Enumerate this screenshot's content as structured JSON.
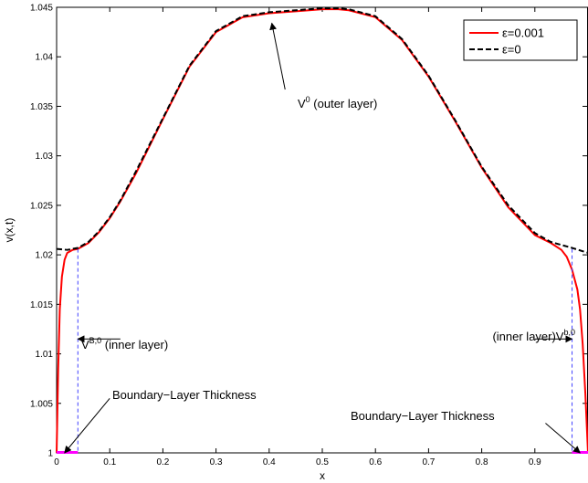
{
  "chart_data": {
    "type": "line",
    "title": "",
    "xlabel": "x",
    "ylabel": "v(x,t)",
    "xlim": [
      0,
      1
    ],
    "ylim": [
      1,
      1.045
    ],
    "x_ticks": [
      0,
      0.1,
      0.2,
      0.3,
      0.4,
      0.5,
      0.6,
      0.7,
      0.8,
      0.9
    ],
    "x_tick_labels": [
      "0",
      "0.1",
      "0.2",
      "0.3",
      "0.4",
      "0.5",
      "0.6",
      "0.7",
      "0.8",
      "0.9"
    ],
    "y_ticks": [
      1,
      1.005,
      1.01,
      1.015,
      1.02,
      1.025,
      1.03,
      1.035,
      1.04,
      1.045
    ],
    "y_tick_labels": [
      "1",
      "1.005",
      "1.01",
      "1.015",
      "1.02",
      "1.025",
      "1.03",
      "1.035",
      "1.04",
      "1.045"
    ],
    "grid": false,
    "legend_position": "top-right",
    "series": [
      {
        "name": "ε=0.001",
        "color": "#ff0000",
        "style": "solid",
        "x": [
          0,
          0.003,
          0.006,
          0.01,
          0.015,
          0.02,
          0.03,
          0.04,
          0.06,
          0.08,
          0.1,
          0.12,
          0.15,
          0.2,
          0.25,
          0.3,
          0.35,
          0.4,
          0.45,
          0.5,
          0.53,
          0.55,
          0.6,
          0.65,
          0.7,
          0.75,
          0.8,
          0.85,
          0.9,
          0.93,
          0.95,
          0.96,
          0.97,
          0.98,
          0.985,
          0.99,
          0.995,
          1.0
        ],
        "y": [
          1.0,
          1.0085,
          1.0145,
          1.0178,
          1.0195,
          1.0202,
          1.0205,
          1.0206,
          1.0212,
          1.0223,
          1.0237,
          1.0254,
          1.0283,
          1.0337,
          1.039,
          1.0425,
          1.044,
          1.0444,
          1.0446,
          1.0448,
          1.0448,
          1.0447,
          1.044,
          1.0417,
          1.038,
          1.0335,
          1.0288,
          1.0248,
          1.022,
          1.0212,
          1.0205,
          1.0198,
          1.0185,
          1.0165,
          1.0145,
          1.011,
          1.006,
          1.0
        ]
      },
      {
        "name": "ε=0",
        "color": "#000000",
        "style": "dashed",
        "x": [
          0,
          0.02,
          0.04,
          0.06,
          0.08,
          0.1,
          0.12,
          0.15,
          0.2,
          0.25,
          0.3,
          0.35,
          0.4,
          0.45,
          0.5,
          0.53,
          0.55,
          0.6,
          0.65,
          0.7,
          0.75,
          0.8,
          0.85,
          0.9,
          0.93,
          0.95,
          0.97,
          1.0
        ],
        "y": [
          1.0206,
          1.0205,
          1.0207,
          1.0213,
          1.0224,
          1.0238,
          1.0255,
          1.0285,
          1.0338,
          1.0391,
          1.0426,
          1.0441,
          1.0445,
          1.0447,
          1.0449,
          1.0449,
          1.0448,
          1.0441,
          1.0418,
          1.0381,
          1.0336,
          1.0289,
          1.025,
          1.0222,
          1.0213,
          1.021,
          1.0207,
          1.0202
        ]
      }
    ],
    "boundary_layer": {
      "left_x": 0.04,
      "right_x": 0.97,
      "top_y": 1.0206
    },
    "annotations": [
      {
        "main": "V",
        "sup": "0",
        "rest": " (outer layer)",
        "tail_xy": [
          0.43,
          1.0367
        ],
        "head_xy": [
          0.405,
          1.0434
        ]
      },
      {
        "main": "V",
        "sup": "B,0",
        "rest": " (inner layer)",
        "tail_xy": [
          0.12,
          1.0115
        ],
        "head_xy": [
          0.04,
          1.0115
        ]
      },
      {
        "main": "(inner layer)V",
        "sup": "b,0",
        "rest": "",
        "tail_xy": [
          0.9,
          1.0115
        ],
        "head_xy": [
          0.97,
          1.0115
        ]
      },
      {
        "main": "Boundary−Layer Thickness",
        "sup": "",
        "rest": "",
        "tail_xy": [
          0.1,
          1.0055
        ],
        "head_xy": [
          0.015,
          1.0
        ]
      },
      {
        "main": "Boundary−Layer Thickness",
        "sup": "",
        "rest": "",
        "tail_xy": [
          0.92,
          1.003
        ],
        "head_xy": [
          0.985,
          1.0
        ]
      }
    ]
  }
}
